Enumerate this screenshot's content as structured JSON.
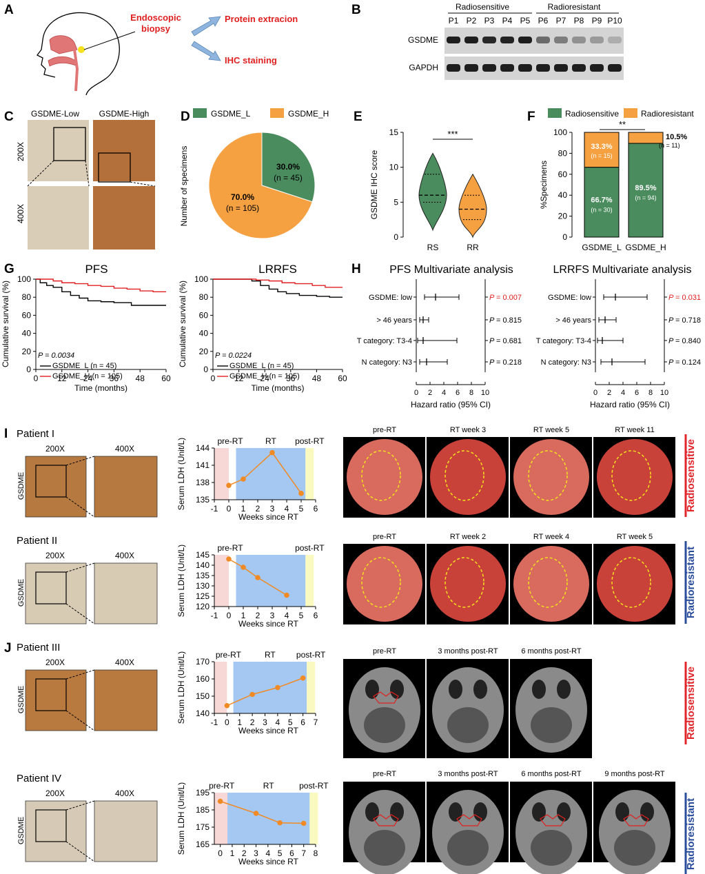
{
  "panel_letters": [
    "A",
    "B",
    "C",
    "D",
    "E",
    "F",
    "G",
    "H",
    "I",
    "J"
  ],
  "A": {
    "biopsy": "Endoscopic biopsy",
    "out1": "Protein extracion",
    "out2": "IHC staining"
  },
  "B": {
    "group1": "Radiosensitive",
    "group2": "Radioresistant",
    "lanes": [
      "P1",
      "P2",
      "P3",
      "P4",
      "P5",
      "P6",
      "P7",
      "P8",
      "P9",
      "P10"
    ],
    "rows": [
      "GSDME",
      "GAPDH"
    ],
    "gsdme_intensity": [
      0.95,
      0.95,
      0.9,
      0.92,
      0.95,
      0.55,
      0.45,
      0.35,
      0.3,
      0.2
    ],
    "gapdh_intensity": [
      0.95,
      0.95,
      0.95,
      0.95,
      0.95,
      0.95,
      0.95,
      0.95,
      0.95,
      0.95
    ]
  },
  "C": {
    "col1": "GSDME-Low",
    "col2": "GSDME-High",
    "row1": "200X",
    "row2": "400X",
    "colors": {
      "low": "#d9cdb8",
      "high": "#b4703a"
    }
  },
  "D": {
    "legend": [
      "GSDME_L",
      "GSDME_H"
    ],
    "ylabel": "Number of specimens",
    "slices": [
      {
        "name": "GSDME_L",
        "pct": "30.0%",
        "n": "(n = 45)",
        "value": 45
      },
      {
        "name": "GSDME_H",
        "pct": "70.0%",
        "n": "(n = 105)",
        "value": 105
      }
    ],
    "colors": [
      "#4a8c5e",
      "#f5a142"
    ]
  },
  "E": {
    "ylabel": "GSDME IHC score",
    "yticks": [
      "0",
      "5",
      "10",
      "15"
    ],
    "ymax": 15,
    "groups": [
      "RS",
      "RR"
    ],
    "sig": "***",
    "RS": {
      "min": 1,
      "max": 12,
      "median": 6,
      "q1": 5,
      "q3": 9
    },
    "RR": {
      "min": 0,
      "max": 9,
      "median": 4,
      "q1": 2.5,
      "q3": 6
    }
  },
  "F": {
    "legend": [
      "Radiosensitive",
      "Radioresistant"
    ],
    "ylabel": "%Specimens",
    "yticks": [
      "0",
      "20",
      "40",
      "60",
      "80",
      "100"
    ],
    "sig": "**",
    "bars": [
      {
        "name": "GSDME_L",
        "sens": 66.7,
        "res": 33.3,
        "sens_label": "66.7%",
        "sens_n": "(n = 30)",
        "res_label": "33.3%",
        "res_n": "(n = 15)"
      },
      {
        "name": "GSDME_H",
        "sens": 89.5,
        "res": 10.5,
        "sens_label": "89.5%",
        "sens_n": "(n = 94)",
        "res_label": "10.5%",
        "res_n": "(n = 11)"
      }
    ]
  },
  "G": {
    "plots": [
      {
        "title": "PFS",
        "p": "P = 0.0034",
        "low": [
          [
            0,
            100
          ],
          [
            2,
            96
          ],
          [
            5,
            93
          ],
          [
            8,
            91
          ],
          [
            12,
            86
          ],
          [
            16,
            82
          ],
          [
            20,
            79
          ],
          [
            24,
            76
          ],
          [
            30,
            75
          ],
          [
            36,
            74
          ],
          [
            44,
            71
          ],
          [
            48,
            71
          ],
          [
            60,
            71
          ]
        ],
        "high": [
          [
            0,
            100
          ],
          [
            4,
            100
          ],
          [
            8,
            98
          ],
          [
            12,
            96
          ],
          [
            18,
            95
          ],
          [
            24,
            93
          ],
          [
            30,
            92
          ],
          [
            36,
            90
          ],
          [
            42,
            89
          ],
          [
            48,
            87
          ],
          [
            54,
            86
          ],
          [
            60,
            86
          ]
        ]
      },
      {
        "title": "LRRFS",
        "p": "P = 0.0224",
        "low": [
          [
            0,
            100
          ],
          [
            12,
            100
          ],
          [
            18,
            98
          ],
          [
            22,
            93
          ],
          [
            26,
            89
          ],
          [
            30,
            86
          ],
          [
            34,
            84
          ],
          [
            40,
            82
          ],
          [
            48,
            81
          ],
          [
            54,
            80
          ],
          [
            60,
            80
          ]
        ],
        "high": [
          [
            0,
            100
          ],
          [
            12,
            100
          ],
          [
            20,
            99
          ],
          [
            26,
            98
          ],
          [
            32,
            96
          ],
          [
            38,
            95
          ],
          [
            46,
            93
          ],
          [
            52,
            91
          ],
          [
            60,
            91
          ]
        ]
      }
    ],
    "ylabel": "Cumulative survival (%)",
    "xlabel": "Time (months)",
    "xticks": [
      "0",
      "12",
      "24",
      "36",
      "48",
      "60"
    ],
    "yticks": [
      "0",
      "20",
      "40",
      "60",
      "80",
      "100"
    ],
    "legend": [
      "GSDME_L (n = 45)",
      "GSDME_H (n = 105)"
    ]
  },
  "H": {
    "plots": [
      {
        "title": "PFS Multivariate analysis",
        "rows": [
          {
            "label": "GSDME: low",
            "hr": 2.8,
            "lo": 1.2,
            "hi": 6.2,
            "p": "= 0.007",
            "red": true
          },
          {
            "label": "> 46 years",
            "hr": 1.0,
            "lo": 0.5,
            "hi": 1.8,
            "p": "= 0.815",
            "red": false
          },
          {
            "label": "T category: T3-4",
            "hr": 1.0,
            "lo": 0.2,
            "hi": 5.9,
            "p": "= 0.681",
            "red": false
          },
          {
            "label": "N category: N3",
            "hr": 1.5,
            "lo": 0.5,
            "hi": 4.5,
            "p": "= 0.218",
            "red": false
          }
        ]
      },
      {
        "title": "LRRFS Multivariate analysis",
        "rows": [
          {
            "label": "GSDME: low",
            "hr": 2.9,
            "lo": 1.2,
            "hi": 7.5,
            "p": "= 0.031",
            "red": true
          },
          {
            "label": "> 46 years",
            "hr": 1.4,
            "lo": 0.5,
            "hi": 3.0,
            "p": "= 0.718",
            "red": false
          },
          {
            "label": "T category: T3-4",
            "hr": 1.0,
            "lo": 0.3,
            "hi": 4.0,
            "p": "= 0.840",
            "red": false
          },
          {
            "label": "N category: N3",
            "hr": 2.4,
            "lo": 0.8,
            "hi": 7.2,
            "p": "= 0.124",
            "red": false
          }
        ]
      }
    ],
    "xlabel": "Hazard ratio (95% CI)",
    "xticks": [
      "0",
      "2",
      "4",
      "6",
      "8",
      "10"
    ],
    "p_letter": "P"
  },
  "patients": [
    {
      "name": "Patient I",
      "stain": "#b67a40",
      "ylabel": "Serum LDH (Unit/L)",
      "xlabel": "Weeks since RT",
      "phases": [
        "pre-RT",
        "RT",
        "post-RT"
      ],
      "xmin": -1,
      "xmax": 6,
      "ymin": 135,
      "ymax": 144,
      "yticks": [
        135,
        138,
        141,
        144
      ],
      "xticks": [
        -1,
        0,
        1,
        2,
        3,
        4,
        5,
        6
      ],
      "rt_start": 0.5,
      "rt_end": 5.3,
      "points": [
        [
          0,
          137.5
        ],
        [
          1,
          138.6
        ],
        [
          3,
          143.2
        ],
        [
          5,
          136.1
        ]
      ],
      "images": [
        "pre-RT",
        "RT week 3",
        "RT week 5",
        "RT week 11"
      ],
      "outcome": "Radiosensitive",
      "outcome_color": "#e0262b"
    },
    {
      "name": "Patient II",
      "stain": "#d8cbb4",
      "ylabel": "Serum LDH (Unit/L)",
      "xlabel": "Weeks since RT",
      "phases": [
        "pre-RT",
        "",
        "post-RT"
      ],
      "xmin": -1,
      "xmax": 6,
      "ymin": 120,
      "ymax": 145,
      "yticks": [
        120,
        125,
        130,
        135,
        140,
        145
      ],
      "xticks": [
        -1,
        0,
        1,
        2,
        3,
        4,
        5,
        6
      ],
      "rt_start": 0.5,
      "rt_end": 5.3,
      "points": [
        [
          0,
          143
        ],
        [
          1,
          139
        ],
        [
          2,
          134
        ],
        [
          4,
          125.5
        ]
      ],
      "images": [
        "pre-RT",
        "RT week 2",
        "RT week 4",
        "RT week 5"
      ],
      "outcome": "Radioresistant",
      "outcome_color": "#2a4d9c"
    },
    {
      "name": "Patient III",
      "stain": "#b87a3e",
      "ylabel": "Serum LDH (Unit/L)",
      "xlabel": "Weeks since RT",
      "phases": [
        "pre-RT",
        "RT",
        "post-RT"
      ],
      "xmin": -1,
      "xmax": 7,
      "ymin": 140,
      "ymax": 170,
      "yticks": [
        140,
        150,
        160,
        170
      ],
      "xticks": [
        -1,
        0,
        1,
        2,
        3,
        4,
        5,
        6,
        7
      ],
      "rt_start": 0.5,
      "rt_end": 6.3,
      "points": [
        [
          0,
          144.5
        ],
        [
          2,
          151
        ],
        [
          4,
          155
        ],
        [
          6,
          160.5
        ]
      ],
      "images": [
        "pre-RT",
        "3 months post-RT",
        "6 months post-RT"
      ],
      "outcome": "Radiosensitive",
      "outcome_color": "#e0262b"
    },
    {
      "name": "Patient IV",
      "stain": "#d6cab6",
      "ylabel": "Serum LDH (Unit/L)",
      "xlabel": "Weeks since RT",
      "phases": [
        "pre-RT",
        "RT",
        "post-RT"
      ],
      "xmin": -0.5,
      "xmax": 8,
      "ymin": 165,
      "ymax": 195,
      "yticks": [
        165,
        175,
        185,
        195
      ],
      "xticks": [
        0,
        1,
        2,
        3,
        4,
        5,
        6,
        7,
        8
      ],
      "rt_start": 0.6,
      "rt_end": 7.5,
      "points": [
        [
          0,
          190
        ],
        [
          3,
          183
        ],
        [
          5,
          177.5
        ],
        [
          7,
          177.2
        ]
      ],
      "images": [
        "pre-RT",
        "3 months post-RT",
        "6 months post-RT",
        "9 months post-RT"
      ],
      "outcome": "Radioresistant",
      "outcome_color": "#2a4d9c"
    }
  ],
  "ihc_labels": {
    "mag1": "200X",
    "mag2": "400X",
    "row": "GSDME"
  }
}
